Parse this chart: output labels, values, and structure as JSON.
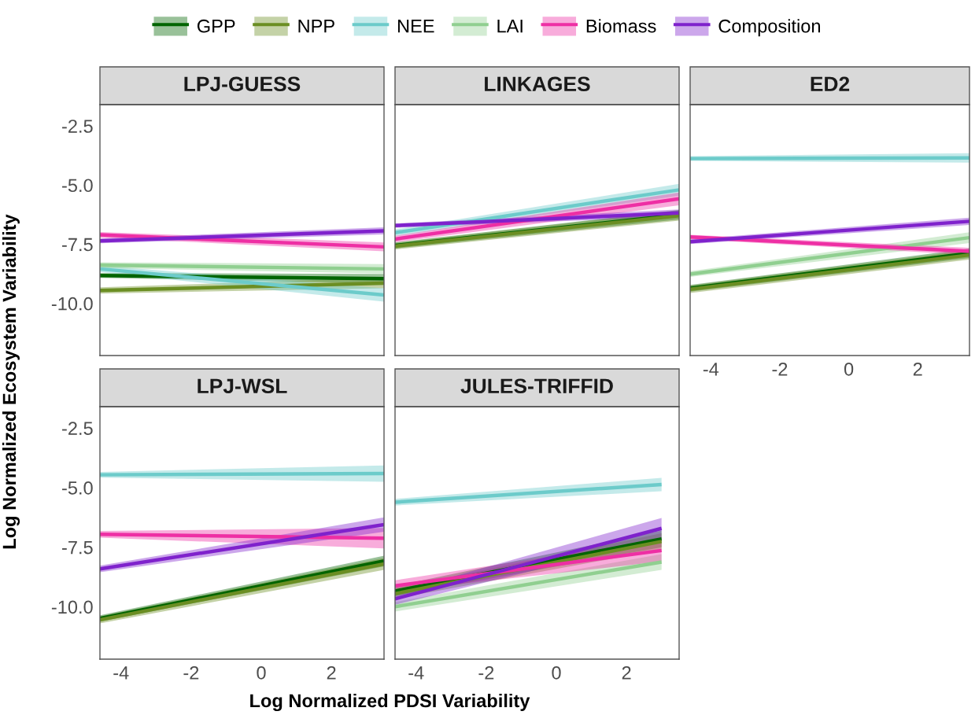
{
  "chart_data": [
    {
      "type": "line",
      "title": "LPJ-GUESS",
      "ylabel": "Log Normalized Ecosystem Variability",
      "legend": "top",
      "tick_labels": "y",
      "xlim": [
        -4.6,
        3.5
      ],
      "xticks": [
        -4,
        -2,
        0,
        2
      ],
      "ylim": [
        -12.2,
        -1.6
      ],
      "yticks": [
        {
          "value": -2.5,
          "label": "-2.5"
        },
        {
          "value": -5,
          "label": "-5.0"
        },
        {
          "value": -7.5,
          "label": "-7.5"
        },
        {
          "value": -10,
          "label": "-10.0"
        }
      ],
      "x": [
        -4.6,
        3.5
      ],
      "series": [
        {
          "name": "GPP",
          "color": "#006400",
          "values": [
            -8.82,
            -8.95
          ],
          "lower": [
            -8.92,
            -9.15
          ],
          "upper": [
            -8.72,
            -8.75
          ]
        },
        {
          "name": "NPP",
          "color": "#6b8e23",
          "values": [
            -9.45,
            -9.14
          ],
          "lower": [
            -9.58,
            -9.36
          ],
          "upper": [
            -9.32,
            -8.92
          ]
        },
        {
          "name": "NEE",
          "color": "#6ccbca",
          "values": [
            -8.54,
            -9.64
          ],
          "lower": [
            -8.68,
            -9.92
          ],
          "upper": [
            -8.4,
            -9.36
          ]
        },
        {
          "name": "LAI",
          "color": "#90cf90",
          "values": [
            -8.38,
            -8.54
          ],
          "lower": [
            -8.5,
            -8.74
          ],
          "upper": [
            -8.26,
            -8.34
          ]
        },
        {
          "name": "Biomass",
          "color": "#ee2fa4",
          "values": [
            -7.1,
            -7.61
          ],
          "lower": [
            -7.22,
            -7.8
          ],
          "upper": [
            -6.98,
            -7.42
          ]
        },
        {
          "name": "Composition",
          "color": "#7f22cc",
          "values": [
            -7.36,
            -6.93
          ],
          "lower": [
            -7.46,
            -7.08
          ],
          "upper": [
            -7.26,
            -6.78
          ]
        }
      ]
    },
    {
      "type": "line",
      "title": "LINKAGES",
      "tick_labels": false,
      "xlim": [
        -4.6,
        3.5
      ],
      "xticks": [
        -4,
        -2,
        0,
        2
      ],
      "ylim": [
        -12.2,
        -1.6
      ],
      "yticks": [
        {
          "value": -2.5,
          "label": "-2.5"
        },
        {
          "value": -5,
          "label": "-5.0"
        },
        {
          "value": -7.5,
          "label": "-7.5"
        },
        {
          "value": -10,
          "label": "-10.0"
        }
      ],
      "x": [
        -4.6,
        3.5
      ],
      "series": [
        {
          "name": "GPP",
          "color": "#006400",
          "values": [
            -7.55,
            -6.25
          ],
          "lower": [
            -7.68,
            -6.45
          ],
          "upper": [
            -7.42,
            -6.05
          ]
        },
        {
          "name": "NPP",
          "color": "#6b8e23",
          "values": [
            -7.58,
            -6.29
          ],
          "lower": [
            -7.72,
            -6.5
          ],
          "upper": [
            -7.44,
            -6.08
          ]
        },
        {
          "name": "NEE",
          "color": "#6ccbca",
          "values": [
            -7.01,
            -5.2
          ],
          "lower": [
            -7.15,
            -5.45
          ],
          "upper": [
            -6.87,
            -4.95
          ]
        },
        {
          "name": "LAI",
          "color": "#90cf90",
          "values": [
            null,
            null
          ]
        },
        {
          "name": "Biomass",
          "color": "#ee2fa4",
          "values": [
            -7.28,
            -5.58
          ],
          "lower": [
            -7.42,
            -5.85
          ],
          "upper": [
            -7.14,
            -5.31
          ]
        },
        {
          "name": "Composition",
          "color": "#7f22cc",
          "values": [
            -6.71,
            -6.18
          ],
          "lower": [
            -6.8,
            -6.33
          ],
          "upper": [
            -6.62,
            -6.03
          ]
        }
      ]
    },
    {
      "type": "line",
      "title": "ED2",
      "tick_labels": "x",
      "xlim": [
        -4.6,
        3.5
      ],
      "xticks": [
        -4,
        -2,
        0,
        2
      ],
      "ylim": [
        -12.2,
        -1.6
      ],
      "yticks": [
        {
          "value": -2.5,
          "label": "-2.5"
        },
        {
          "value": -5,
          "label": "-5.0"
        },
        {
          "value": -7.5,
          "label": "-7.5"
        },
        {
          "value": -10,
          "label": "-10.0"
        }
      ],
      "x": [
        -4.6,
        3.5
      ],
      "series": [
        {
          "name": "GPP",
          "color": "#006400",
          "values": [
            -9.36,
            -7.88
          ],
          "lower": [
            -9.5,
            -8.08
          ],
          "upper": [
            -9.22,
            -7.68
          ]
        },
        {
          "name": "NPP",
          "color": "#6b8e23",
          "values": [
            -9.4,
            -7.95
          ],
          "lower": [
            -9.56,
            -8.15
          ],
          "upper": [
            -9.24,
            -7.75
          ]
        },
        {
          "name": "NEE",
          "color": "#6ccbca",
          "values": [
            -3.88,
            -3.85
          ],
          "lower": [
            -3.98,
            -4.05
          ],
          "upper": [
            -3.78,
            -3.65
          ]
        },
        {
          "name": "LAI",
          "color": "#90cf90",
          "values": [
            -8.76,
            -7.22
          ],
          "lower": [
            -8.88,
            -7.45
          ],
          "upper": [
            -8.64,
            -6.99
          ]
        },
        {
          "name": "Biomass",
          "color": "#ee2fa4",
          "values": [
            -7.19,
            -7.8
          ],
          "lower": [
            -7.28,
            -7.95
          ],
          "upper": [
            -7.1,
            -7.65
          ]
        },
        {
          "name": "Composition",
          "color": "#7f22cc",
          "values": [
            -7.39,
            -6.53
          ],
          "lower": [
            -7.49,
            -6.68
          ],
          "upper": [
            -7.29,
            -6.38
          ]
        }
      ]
    },
    {
      "type": "line",
      "title": "LPJ-WSL",
      "xlim": [
        -4.6,
        3.5
      ],
      "xticks": [
        -4,
        -2,
        0,
        2
      ],
      "ylim": [
        -12.2,
        -1.6
      ],
      "yticks": [
        {
          "value": -2.5,
          "label": "-2.5"
        },
        {
          "value": -5,
          "label": "-5.0"
        },
        {
          "value": -7.5,
          "label": "-7.5"
        },
        {
          "value": -10,
          "label": "-10.0"
        }
      ],
      "x": [
        -4.6,
        3.5
      ],
      "series": [
        {
          "name": "GPP",
          "color": "#006400",
          "values": [
            -10.49,
            -8.08
          ],
          "lower": [
            -10.62,
            -8.3
          ],
          "upper": [
            -10.36,
            -7.86
          ]
        },
        {
          "name": "NPP",
          "color": "#6b8e23",
          "values": [
            -10.55,
            -8.2
          ],
          "lower": [
            -10.7,
            -8.45
          ],
          "upper": [
            -10.4,
            -7.95
          ]
        },
        {
          "name": "NEE",
          "color": "#6ccbca",
          "values": [
            -4.46,
            -4.41
          ],
          "lower": [
            -4.58,
            -4.75
          ],
          "upper": [
            -4.34,
            -4.07
          ]
        },
        {
          "name": "LAI",
          "color": "#90cf90",
          "values": [
            null,
            null
          ]
        },
        {
          "name": "Biomass",
          "color": "#ee2fa4",
          "values": [
            -6.96,
            -7.12
          ],
          "lower": [
            -7.1,
            -7.55
          ],
          "upper": [
            -6.82,
            -6.69
          ]
        },
        {
          "name": "Composition",
          "color": "#7f22cc",
          "values": [
            -8.41,
            -6.55
          ],
          "lower": [
            -8.55,
            -6.85
          ],
          "upper": [
            -8.27,
            -6.25
          ]
        }
      ]
    },
    {
      "type": "line",
      "title": "JULES-TRIFFID",
      "xlabel": "Log Normalized PDSI Variability",
      "tick_labels": "x",
      "xlim": [
        -4.6,
        3.5
      ],
      "xticks": [
        -4,
        -2,
        0,
        2
      ],
      "ylim": [
        -12.2,
        -1.6
      ],
      "yticks": [
        {
          "value": -2.5,
          "label": "-2.5"
        },
        {
          "value": -5,
          "label": "-5.0"
        },
        {
          "value": -7.5,
          "label": "-7.5"
        },
        {
          "value": -10,
          "label": "-10.0"
        }
      ],
      "x": [
        -4.6,
        3.0
      ],
      "series": [
        {
          "name": "GPP",
          "color": "#006400",
          "values": [
            -9.34,
            -7.15
          ],
          "lower": [
            -9.55,
            -7.5
          ],
          "upper": [
            -9.13,
            -6.8
          ]
        },
        {
          "name": "NPP",
          "color": "#6b8e23",
          "values": [
            -9.45,
            -7.26
          ],
          "lower": [
            -9.66,
            -7.6
          ],
          "upper": [
            -9.24,
            -6.92
          ]
        },
        {
          "name": "NEE",
          "color": "#6ccbca",
          "values": [
            -5.61,
            -4.87
          ],
          "lower": [
            -5.75,
            -5.15
          ],
          "upper": [
            -5.47,
            -4.59
          ]
        },
        {
          "name": "LAI",
          "color": "#90cf90",
          "values": [
            -10.0,
            -8.12
          ],
          "lower": [
            -10.2,
            -8.45
          ],
          "upper": [
            -9.8,
            -7.79
          ]
        },
        {
          "name": "Biomass",
          "color": "#ee2fa4",
          "values": [
            -9.12,
            -7.64
          ],
          "lower": [
            -9.35,
            -8.1
          ],
          "upper": [
            -8.89,
            -7.18
          ]
        },
        {
          "name": "Composition",
          "color": "#7f22cc",
          "values": [
            -9.67,
            -6.71
          ],
          "lower": [
            -9.92,
            -7.15
          ],
          "upper": [
            -9.42,
            -6.27
          ]
        }
      ]
    }
  ]
}
